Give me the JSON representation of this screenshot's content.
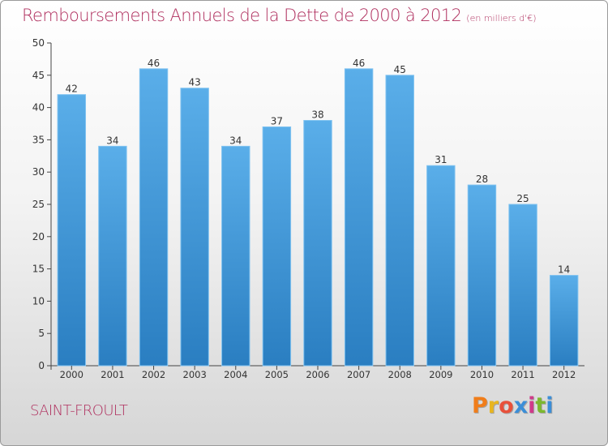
{
  "title": "Remboursements Annuels de la Dette de 2000 à 2012",
  "unit": "(en milliers d'€)",
  "commune": "SAINT-FROULT",
  "logo": {
    "letters": [
      "P",
      "r",
      "o",
      "x",
      "i",
      "t",
      "i"
    ],
    "colors": [
      "#f07d1a",
      "#e8b51f",
      "#e8503a",
      "#3b8ed8",
      "#d03a8a",
      "#7cb82f",
      "#3b8ed8"
    ]
  },
  "colors": {
    "bar_top": "#5aaee9",
    "bar_bottom": "#2a7ec1",
    "title": "#b0305f"
  },
  "chart_data": {
    "type": "bar",
    "categories": [
      "2000",
      "2001",
      "2002",
      "2003",
      "2004",
      "2005",
      "2006",
      "2007",
      "2008",
      "2009",
      "2010",
      "2011",
      "2012"
    ],
    "values": [
      42,
      34,
      46,
      43,
      34,
      37,
      38,
      46,
      45,
      31,
      28,
      25,
      14
    ],
    "ylim": [
      0,
      50
    ],
    "yticks": [
      0,
      5,
      10,
      15,
      20,
      25,
      30,
      35,
      40,
      45,
      50
    ],
    "grid": false,
    "data_labels": true
  }
}
